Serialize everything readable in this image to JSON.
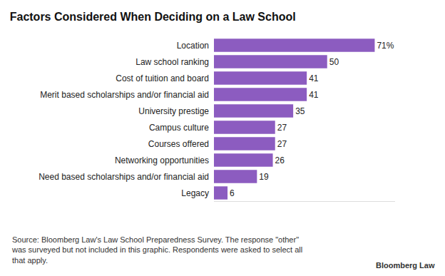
{
  "chart_data": {
    "type": "bar",
    "orientation": "horizontal",
    "title": "Factors Considered When Deciding on a Law School",
    "categories": [
      "Location",
      "Law school ranking",
      "Cost of tuition and board",
      "Merit based scholarships and/or financial aid",
      "University prestige",
      "Campus culture",
      "Courses offered",
      "Networking opportunities",
      "Need based scholarships and/or financial aid",
      "Legacy"
    ],
    "values": [
      71,
      50,
      41,
      41,
      35,
      27,
      27,
      26,
      19,
      6
    ],
    "value_labels": [
      "71%",
      "50",
      "41",
      "41",
      "35",
      "27",
      "27",
      "26",
      "19",
      "6"
    ],
    "color": "#8c5cc0",
    "data_labels": true,
    "tick_labels": "y",
    "grid": false,
    "xlim": [
      0,
      80
    ],
    "xticks": [],
    "annotations": [
      "Source: Bloomberg Law's Law School Preparedness Survey. The response \"other\"",
      "was surveyed but not included in this graphic. Respondents were asked to select all",
      "that apply."
    ],
    "brand": "Bloomberg Law"
  }
}
